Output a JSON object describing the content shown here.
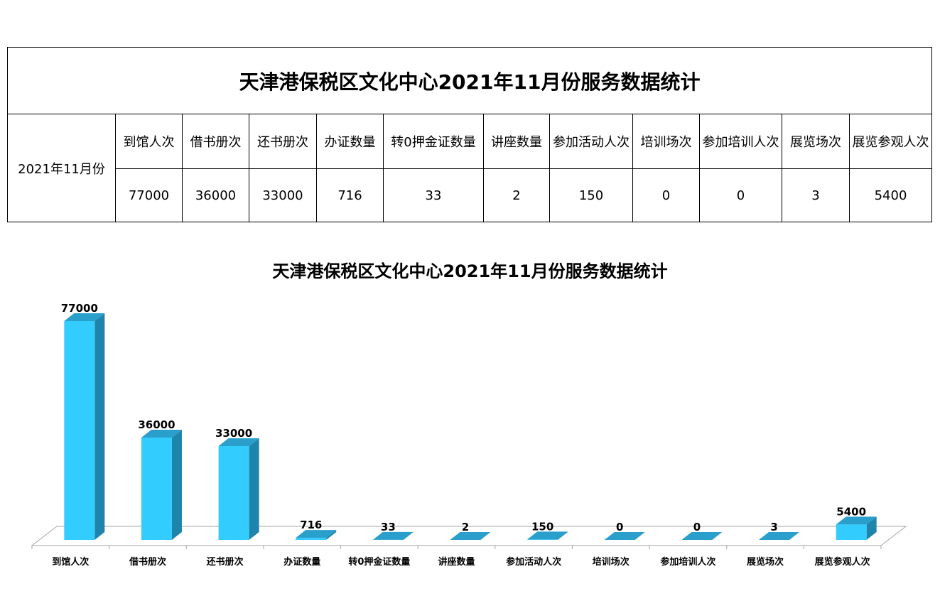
{
  "table": {
    "title": "天津港保税区文化中心2021年11月份服务数据统计",
    "row_label": "2021年11月份",
    "headers": [
      "到馆人次",
      "借书册次",
      "还书册次",
      "办证数量",
      "转0押金证数量",
      "讲座数量",
      "参加活动人次",
      "培训场次",
      "参加培训人次",
      "展览场次",
      "展览参观人次"
    ],
    "values": [
      "77000",
      "36000",
      "33000",
      "716",
      "33",
      "2",
      "150",
      "0",
      "0",
      "3",
      "5400"
    ]
  },
  "chart_data": {
    "type": "bar",
    "bar_style": "3d",
    "title": "天津港保税区文化中心2021年11月份服务数据统计",
    "categories": [
      "到馆人次",
      "借书册次",
      "还书册次",
      "办证数量",
      "转0押金证数量",
      "讲座数量",
      "参加活动人次",
      "培训场次",
      "参加培训人次",
      "展览场次",
      "展览参观人次"
    ],
    "values": [
      77000,
      36000,
      33000,
      716,
      33,
      2,
      150,
      0,
      0,
      3,
      5400
    ],
    "ylim": [
      0,
      80000
    ],
    "grid": false,
    "legend": "none",
    "data_labels": true,
    "colors": {
      "front": "#33CCFF",
      "side": "#1F84AB",
      "top": "#2A9FCC"
    }
  }
}
